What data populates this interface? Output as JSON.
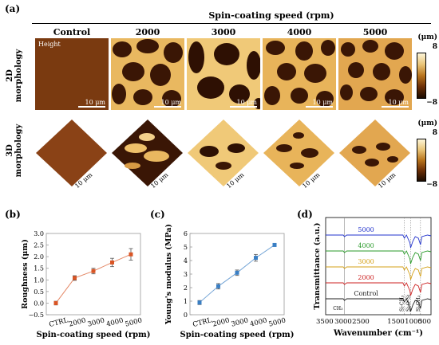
{
  "panel_a": {
    "label": "(a)",
    "title": "Spin-coating speed (rpm)",
    "columns": [
      "Control",
      "2000",
      "3000",
      "4000",
      "5000"
    ],
    "row_2d_line1": "2D",
    "row_2d_line2": "morphology",
    "row_3d_line1": "3D",
    "row_3d_line2": "morphology",
    "height_tag": "Height",
    "scalebar": "10 μm",
    "colorbar_unit": "(μm)",
    "colorbar_max": "8",
    "colorbar_min": "−8",
    "colormap": [
      "#1a0a00",
      "#6b2e06",
      "#b8741c",
      "#e9c477",
      "#fdf5d8"
    ]
  },
  "panel_labels": {
    "b": "(b)",
    "c": "(c)",
    "d": "(d)"
  },
  "chart_data": [
    {
      "type": "line",
      "panel": "b",
      "categories": [
        "CTRL",
        "2000",
        "3000",
        "4000",
        "5000"
      ],
      "values": [
        0.0,
        1.08,
        1.38,
        1.75,
        2.1
      ],
      "errors": [
        0.08,
        0.1,
        0.12,
        0.18,
        0.25
      ],
      "xlabel": "Spin-coating speed (rpm)",
      "ylabel": "Roughness (μm)",
      "ylim": [
        -0.5,
        3.0
      ],
      "yticks": [
        "−0.5",
        "0.0",
        "0.5",
        "1.0",
        "1.5",
        "2.0",
        "2.5",
        "3.0"
      ],
      "color": "#d95525"
    },
    {
      "type": "line",
      "panel": "c",
      "categories": [
        "CTRL",
        "2000",
        "3000",
        "4000",
        "5000"
      ],
      "values": [
        0.9,
        2.1,
        3.1,
        4.2,
        5.15
      ],
      "errors": [
        0.15,
        0.2,
        0.2,
        0.25,
        0.05
      ],
      "xlabel": "Spin-coating speed (rpm)",
      "ylabel": "Young's modulus (MPa)",
      "ylim": [
        0,
        6
      ],
      "yticks": [
        "0",
        "1",
        "2",
        "3",
        "4",
        "5",
        "6"
      ],
      "color": "#3a7fc4"
    },
    {
      "type": "line",
      "panel": "d",
      "xlabel": "Wavenumber (cm⁻¹)",
      "ylabel": "Transmittance (a.u.)",
      "xlim": [
        3500,
        500
      ],
      "xticks": [
        "3500",
        "3000",
        "2500",
        "1500",
        "1000",
        "500"
      ],
      "series": [
        {
          "name": "5000",
          "color": "#2233cc"
        },
        {
          "name": "4000",
          "color": "#2a9a2a"
        },
        {
          "name": "3000",
          "color": "#d4a017"
        },
        {
          "name": "2000",
          "color": "#cc2222"
        },
        {
          "name": "Control",
          "color": "#222222"
        }
      ],
      "annotations": [
        "CH₃",
        "Si-CH₃",
        "Si-O-Si",
        "Si-CH₃"
      ]
    }
  ]
}
